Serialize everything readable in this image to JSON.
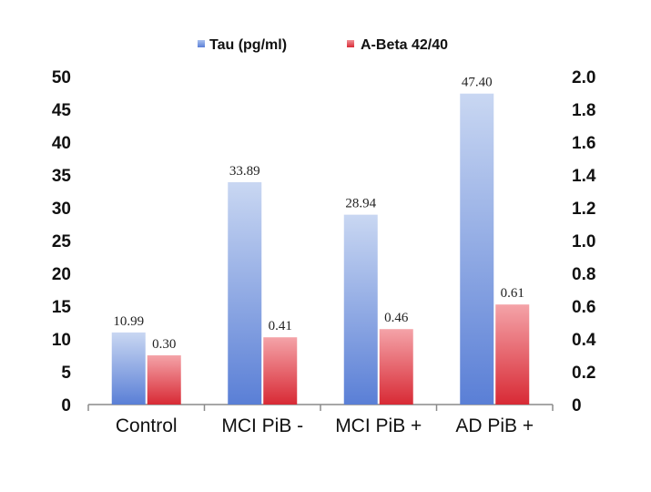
{
  "chart_data": {
    "type": "bar",
    "categories": [
      "Control",
      "MCI PiB -",
      "MCI PiB +",
      "AD PiB +"
    ],
    "series": [
      {
        "name": "Tau (pg/ml)",
        "axis": "left",
        "color": "#6f8fd8",
        "values": [
          10.99,
          33.89,
          28.94,
          47.4
        ],
        "labels": [
          "10.99",
          "33.89",
          "28.94",
          "47.40"
        ]
      },
      {
        "name": "A-Beta 42/40",
        "axis": "right",
        "color": "#d8323c",
        "values": [
          0.3,
          0.41,
          0.46,
          0.61
        ],
        "labels": [
          "0.30",
          "0.41",
          "0.46",
          "0.61"
        ]
      }
    ],
    "left_axis": {
      "ylim": [
        0,
        50
      ],
      "ticks": [
        "0",
        "5",
        "10",
        "15",
        "20",
        "25",
        "30",
        "35",
        "40",
        "45",
        "50"
      ]
    },
    "right_axis": {
      "ylim": [
        0,
        2.0
      ],
      "ticks": [
        "0",
        "0.2",
        "0.4",
        "0.6",
        "0.8",
        "1.0",
        "1.2",
        "1.4",
        "1.6",
        "1.8",
        "2.0"
      ]
    },
    "legend_position": "top-center",
    "grid": false
  }
}
